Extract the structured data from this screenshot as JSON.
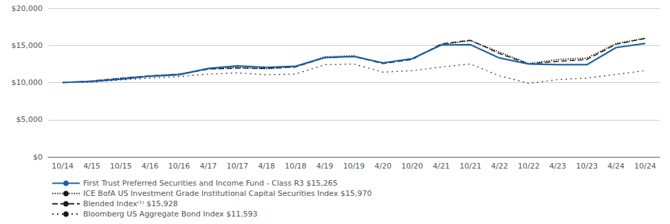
{
  "chart_data": {
    "type": "line",
    "categories": [
      "10/14",
      "4/15",
      "10/15",
      "4/16",
      "10/16",
      "4/17",
      "10/17",
      "4/18",
      "10/18",
      "4/19",
      "10/19",
      "4/20",
      "10/20",
      "4/21",
      "10/21",
      "4/22",
      "10/22",
      "4/23",
      "10/23",
      "4/24",
      "10/24"
    ],
    "series": [
      {
        "name": "First Trust Preferred Securities and Income Fund - Class R3 $15,265",
        "color": "#1a5fa8",
        "line_style": "solid",
        "values": [
          10000,
          10150,
          10450,
          10850,
          11050,
          11900,
          12250,
          12050,
          12200,
          13350,
          13500,
          12650,
          13200,
          15050,
          15100,
          13300,
          12500,
          12400,
          12400,
          14700,
          15265
        ]
      },
      {
        "name": "ICE BofA US Investment Grade Institutional Capital Securities Index $15,970",
        "color": "#1a1a1a",
        "line_style": "dotted",
        "values": [
          10000,
          10200,
          10600,
          10900,
          11150,
          11850,
          12050,
          11850,
          12150,
          13450,
          13600,
          12600,
          13250,
          15100,
          15650,
          14100,
          12550,
          13100,
          13300,
          15250,
          15970
        ]
      },
      {
        "name": "Blended Index⁽¹⁾ $15,928",
        "color": "#1a1a1a",
        "line_style": "dashed",
        "values": [
          10000,
          10200,
          10550,
          10900,
          11100,
          11800,
          11950,
          11900,
          12100,
          13350,
          13500,
          12550,
          13100,
          15200,
          15700,
          13900,
          12500,
          12850,
          13100,
          15150,
          15928
        ]
      },
      {
        "name": "Bloomberg US Aggregate Bond Index $11,593",
        "color": "#1a1a1a",
        "line_style": "loosely_dotted",
        "values": [
          10000,
          10050,
          10350,
          10600,
          10800,
          11150,
          11300,
          11050,
          11150,
          12400,
          12500,
          11400,
          11600,
          12100,
          12500,
          10900,
          9900,
          10400,
          10600,
          11100,
          11593
        ]
      }
    ],
    "ylim": [
      0,
      20000
    ],
    "yticks": [
      {
        "value": 0,
        "label": "$0"
      },
      {
        "value": 5000,
        "label": "$5,000"
      },
      {
        "value": 10000,
        "label": "$10,000"
      },
      {
        "value": 15000,
        "label": "$15,000"
      },
      {
        "value": 20000,
        "label": "$20,000"
      }
    ],
    "grid": true,
    "legend": "lower left"
  }
}
